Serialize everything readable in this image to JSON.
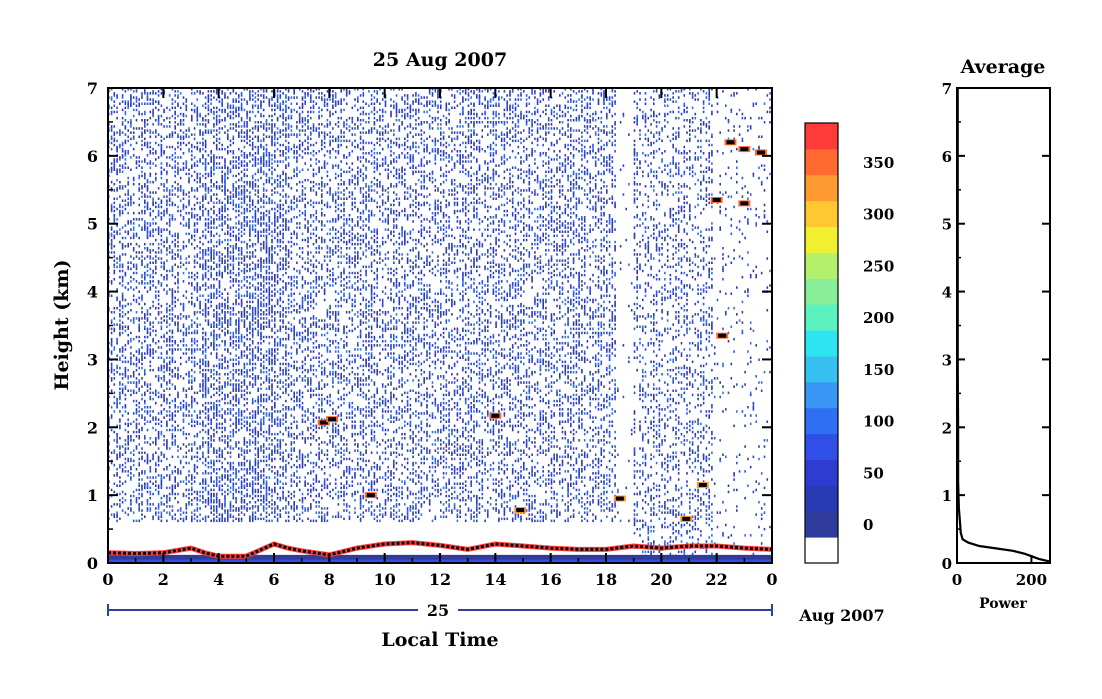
{
  "chart_data": [
    {
      "type": "heatmap",
      "title": "25 Aug 2007",
      "xlabel": "Local Time",
      "ylabel": "Height (km)",
      "xlim": [
        0,
        24
      ],
      "ylim": [
        0,
        7
      ],
      "x_ticks": [
        "0",
        "2",
        "4",
        "6",
        "8",
        "10",
        "12",
        "14",
        "16",
        "18",
        "20",
        "22",
        "0"
      ],
      "y_ticks": [
        "0",
        "1",
        "2",
        "3",
        "4",
        "5",
        "6",
        "7"
      ],
      "date_axis": {
        "day_label": "25",
        "month_label": "Aug 2007"
      },
      "colorbar": {
        "tick_labels": [
          "0",
          "50",
          "100",
          "150",
          "200",
          "250",
          "300",
          "350"
        ],
        "levels": [
          0,
          25,
          50,
          75,
          100,
          125,
          150,
          175,
          200,
          225,
          250,
          275,
          300,
          325,
          350,
          375
        ],
        "colors": [
          "#ffffff",
          "#303c9c",
          "#2a3ab4",
          "#2e3cd0",
          "#2f4fe8",
          "#2f6ff4",
          "#3a96f4",
          "#36c0f0",
          "#2ee4f0",
          "#5cf2c0",
          "#88ee98",
          "#b4f06c",
          "#f0f030",
          "#ffc830",
          "#ff9a30",
          "#ff6a30",
          "#ff3a3a"
        ]
      },
      "boundary_layer": {
        "times": [
          0,
          1,
          2,
          3,
          3.5,
          4,
          5,
          6,
          6.5,
          7,
          8,
          9,
          10,
          11,
          12,
          13,
          14,
          15,
          16,
          17,
          18,
          19,
          20,
          21,
          22,
          23,
          24
        ],
        "heights": [
          0.15,
          0.14,
          0.15,
          0.22,
          0.15,
          0.1,
          0.1,
          0.28,
          0.22,
          0.18,
          0.12,
          0.22,
          0.28,
          0.3,
          0.26,
          0.2,
          0.28,
          0.25,
          0.22,
          0.2,
          0.2,
          0.25,
          0.22,
          0.25,
          0.25,
          0.22,
          0.2
        ]
      },
      "echoes": [
        {
          "t": 7.8,
          "h": 2.07,
          "v": 370
        },
        {
          "t": 8.1,
          "h": 2.12,
          "v": 360
        },
        {
          "t": 14.0,
          "h": 2.17,
          "v": 360
        },
        {
          "t": 9.5,
          "h": 1.0,
          "v": 350
        },
        {
          "t": 22.5,
          "h": 6.2,
          "v": 370
        },
        {
          "t": 23.0,
          "h": 6.1,
          "v": 360
        },
        {
          "t": 23.6,
          "h": 6.05,
          "v": 360
        },
        {
          "t": 22.0,
          "h": 5.35,
          "v": 360
        },
        {
          "t": 23.0,
          "h": 5.3,
          "v": 360
        },
        {
          "t": 22.2,
          "h": 3.35,
          "v": 350
        },
        {
          "t": 14.9,
          "h": 0.78,
          "v": 340
        },
        {
          "t": 18.5,
          "h": 0.95,
          "v": 340
        },
        {
          "t": 20.9,
          "h": 0.65,
          "v": 340
        },
        {
          "t": 21.5,
          "h": 1.15,
          "v": 340
        }
      ]
    },
    {
      "type": "line",
      "title": "Average",
      "xlabel": "Power",
      "ylabel": "",
      "xlim": [
        0,
        250
      ],
      "ylim": [
        0,
        7
      ],
      "x_ticks": [
        "0",
        "200"
      ],
      "y_ticks": [
        "0",
        "1",
        "2",
        "3",
        "4",
        "5",
        "6",
        "7"
      ],
      "series": [
        {
          "x": [
            250,
            220,
            200,
            180,
            150,
            100,
            60,
            30,
            15,
            10,
            8,
            5,
            3,
            3,
            2,
            2,
            2
          ],
          "y": [
            0.02,
            0.06,
            0.1,
            0.14,
            0.18,
            0.22,
            0.25,
            0.3,
            0.35,
            0.45,
            0.6,
            0.8,
            1.2,
            2.0,
            3.0,
            5.0,
            7.0
          ]
        }
      ]
    }
  ]
}
